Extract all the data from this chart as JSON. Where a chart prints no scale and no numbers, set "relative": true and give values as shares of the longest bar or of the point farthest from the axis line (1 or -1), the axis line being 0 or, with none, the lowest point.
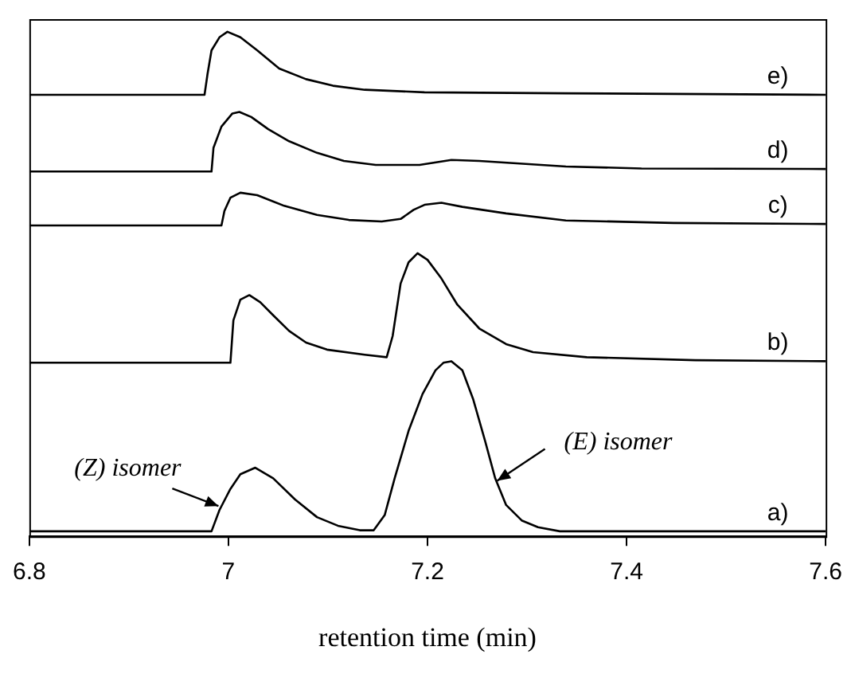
{
  "chart_data": {
    "type": "line",
    "relative": true,
    "xlabel": "retention time (min)",
    "xlim": [
      6.8,
      7.6
    ],
    "xticks": [
      6.8,
      7,
      7.2,
      7.4,
      7.6
    ],
    "marker": "none",
    "line_style": "solid",
    "legend": false,
    "annotations": [
      {
        "text": "(Z) isomer",
        "x": 6.99,
        "y": 0.06
      },
      {
        "text": "(E) isomer",
        "x": 7.27,
        "y": 0.11
      }
    ],
    "series": [
      {
        "name": "a)",
        "color": "#000000",
        "x": [
          6.8,
          6.983,
          6.991,
          7.002,
          7.012,
          7.027,
          7.045,
          7.067,
          7.089,
          7.11,
          7.132,
          7.146,
          7.157,
          7.167,
          7.181,
          7.195,
          7.208,
          7.216,
          7.224,
          7.235,
          7.246,
          7.258,
          7.268,
          7.279,
          7.295,
          7.311,
          7.333,
          7.6
        ],
        "values": [
          0.01,
          0.01,
          0.052,
          0.094,
          0.123,
          0.136,
          0.115,
          0.073,
          0.038,
          0.021,
          0.012,
          0.012,
          0.042,
          0.115,
          0.209,
          0.282,
          0.329,
          0.344,
          0.347,
          0.329,
          0.271,
          0.188,
          0.115,
          0.062,
          0.031,
          0.018,
          0.01,
          0.01
        ]
      },
      {
        "name": "b)",
        "color": "#000000",
        "x": [
          6.8,
          7.002,
          7.005,
          7.012,
          7.021,
          7.032,
          7.045,
          7.061,
          7.078,
          7.099,
          7.137,
          7.159,
          7.165,
          7.173,
          7.181,
          7.19,
          7.2,
          7.214,
          7.23,
          7.252,
          7.279,
          7.306,
          7.36,
          7.469,
          7.6
        ],
        "values": [
          0.344,
          0.344,
          0.428,
          0.469,
          0.478,
          0.464,
          0.438,
          0.407,
          0.384,
          0.37,
          0.36,
          0.355,
          0.397,
          0.501,
          0.543,
          0.561,
          0.548,
          0.511,
          0.459,
          0.412,
          0.381,
          0.365,
          0.355,
          0.349,
          0.347
        ]
      },
      {
        "name": "c)",
        "color": "#000000",
        "x": [
          6.8,
          6.993,
          6.996,
          7.002,
          7.012,
          7.029,
          7.056,
          7.089,
          7.121,
          7.154,
          7.173,
          7.186,
          7.197,
          7.214,
          7.235,
          7.279,
          7.339,
          7.447,
          7.6
        ],
        "values": [
          0.616,
          0.616,
          0.645,
          0.671,
          0.681,
          0.676,
          0.655,
          0.637,
          0.627,
          0.624,
          0.629,
          0.647,
          0.657,
          0.661,
          0.653,
          0.64,
          0.626,
          0.621,
          0.619
        ]
      },
      {
        "name": "d)",
        "color": "#000000",
        "x": [
          6.8,
          6.983,
          6.985,
          6.993,
          7.004,
          7.011,
          7.023,
          7.04,
          7.061,
          7.089,
          7.116,
          7.148,
          7.192,
          7.224,
          7.252,
          7.339,
          7.415,
          7.6
        ],
        "values": [
          0.723,
          0.723,
          0.77,
          0.812,
          0.838,
          0.841,
          0.831,
          0.807,
          0.783,
          0.76,
          0.744,
          0.736,
          0.736,
          0.746,
          0.744,
          0.733,
          0.729,
          0.728
        ]
      },
      {
        "name": "e)",
        "color": "#000000",
        "x": [
          6.8,
          6.976,
          6.979,
          6.983,
          6.991,
          6.999,
          7.012,
          7.029,
          7.051,
          7.078,
          7.105,
          7.137,
          7.197,
          7.339,
          7.6
        ],
        "values": [
          0.875,
          0.875,
          0.916,
          0.963,
          0.989,
          1.0,
          0.989,
          0.963,
          0.927,
          0.906,
          0.893,
          0.885,
          0.88,
          0.878,
          0.875
        ]
      }
    ]
  }
}
